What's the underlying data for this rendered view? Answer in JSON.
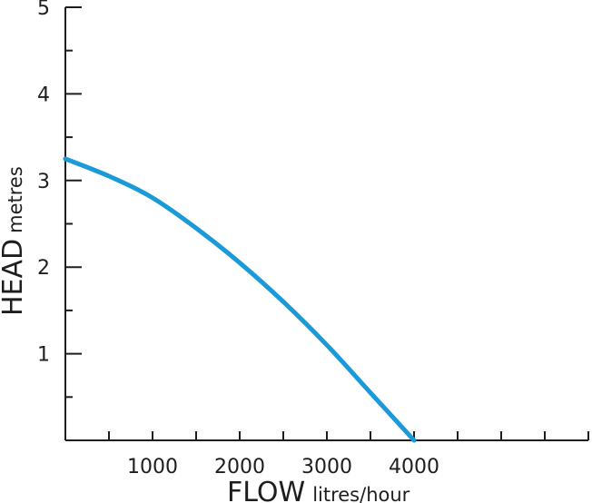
{
  "chart_data": {
    "type": "line",
    "xlabel": "FLOW",
    "xlabel_unit": "litres/hour",
    "ylabel": "HEAD",
    "ylabel_unit": "metres",
    "xlim": [
      0,
      6000
    ],
    "ylim": [
      0,
      5
    ],
    "x_major_ticks": [
      1000,
      2000,
      3000,
      4000
    ],
    "x_tick_labels": [
      "1000",
      "2000",
      "3000",
      "4000"
    ],
    "x_minor_step": 500,
    "y_ticks": [
      1,
      2,
      3,
      4,
      5
    ],
    "y_tick_labels": [
      "1",
      "2",
      "3",
      "4",
      "5"
    ],
    "y_minor_step": 0.5,
    "grid": false,
    "line_color": "#1a9ad8",
    "axis_color": "#1e1e1e",
    "series": [
      {
        "x": [
          0,
          500,
          1000,
          1500,
          2000,
          2500,
          3000,
          3500,
          4000
        ],
        "y": [
          3.25,
          3.05,
          2.8,
          2.45,
          2.05,
          1.6,
          1.1,
          0.55,
          0
        ]
      }
    ]
  }
}
